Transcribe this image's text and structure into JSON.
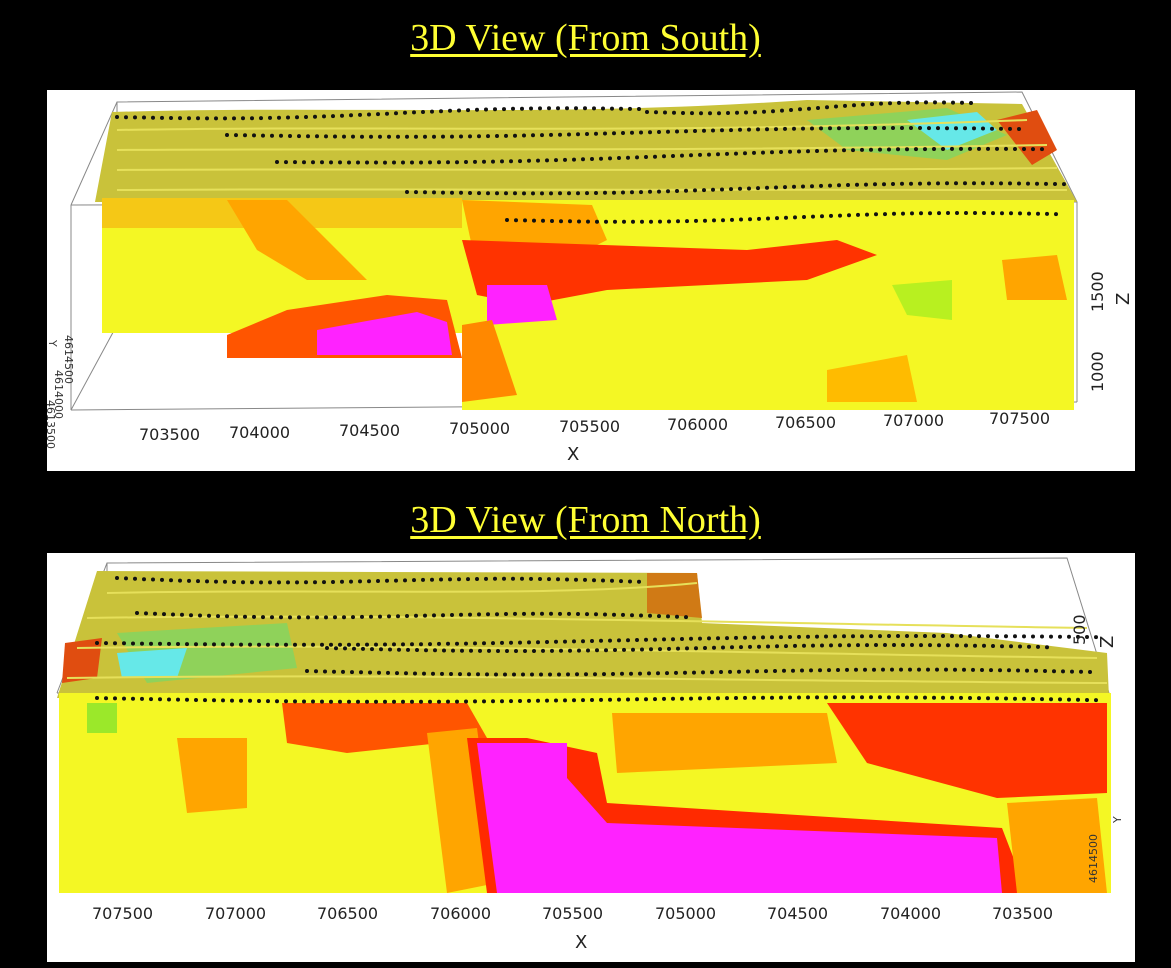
{
  "south": {
    "title": "3D View (From South)",
    "x_ticks": [
      "703500",
      "704000",
      "704500",
      "705000",
      "705500",
      "706000",
      "706500",
      "707000",
      "707500"
    ],
    "x_label": "X",
    "z_ticks": [
      "1500",
      "1000"
    ],
    "z_label": "Z",
    "y_ticks": [
      "4614500",
      "4614000",
      "4613500"
    ],
    "y_label": "Y"
  },
  "north": {
    "title": "3D View (From North)",
    "x_ticks": [
      "707500",
      "707000",
      "706500",
      "706000",
      "705500",
      "705000",
      "704500",
      "704000",
      "703500"
    ],
    "x_label": "X",
    "z_ticks": [
      "500"
    ],
    "z_label": "Z",
    "y_ticks": [
      "4614500"
    ],
    "y_label": "Y"
  },
  "colors": {
    "background": "#000000",
    "title": "#ffff33",
    "yellow": "#f4f724",
    "orange": "#ffa500",
    "red": "#ff2a00",
    "magenta": "#ff22ff",
    "cyan": "#66e8e8",
    "green": "#9bd02a",
    "olive": "#c9c23a"
  }
}
